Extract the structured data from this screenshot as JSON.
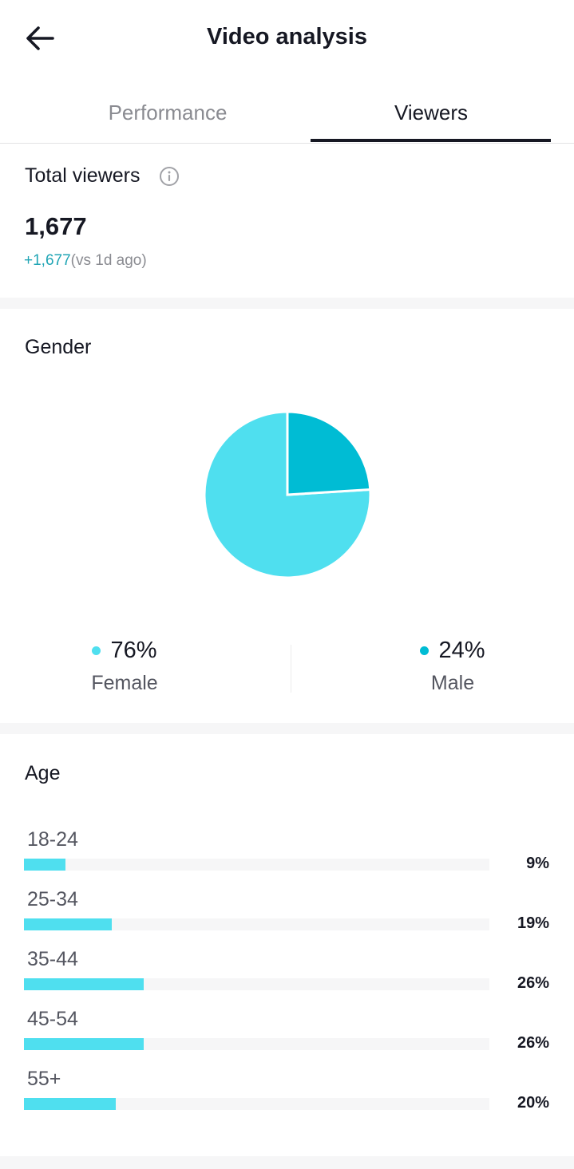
{
  "header": {
    "title": "Video analysis",
    "back_icon": "arrow-left-icon"
  },
  "tabs": [
    {
      "label": "Performance",
      "active": false
    },
    {
      "label": "Viewers",
      "active": true
    }
  ],
  "total_viewers": {
    "label": "Total viewers",
    "info_icon": "info-circle-icon",
    "value": "1,677",
    "change": "+1,677",
    "change_suffix": "(vs 1d ago)"
  },
  "gender": {
    "title": "Gender",
    "female": {
      "percent_text": "76%",
      "label": "Female",
      "color": "#4fdfef",
      "value": 76
    },
    "male": {
      "percent_text": "24%",
      "label": "Male",
      "color": "#00bcd4",
      "value": 24
    }
  },
  "age": {
    "title": "Age",
    "bar_color": "#4fdfef",
    "groups": [
      {
        "label": "18-24",
        "percent_text": "9%",
        "value": 9
      },
      {
        "label": "25-34",
        "percent_text": "19%",
        "value": 19
      },
      {
        "label": "35-44",
        "percent_text": "26%",
        "value": 26
      },
      {
        "label": "45-54",
        "percent_text": "26%",
        "value": 26
      },
      {
        "label": "55+",
        "percent_text": "20%",
        "value": 20
      }
    ]
  },
  "colors": {
    "accent": "#20a5b5",
    "text": "#161823",
    "muted": "#8a8b91"
  }
}
